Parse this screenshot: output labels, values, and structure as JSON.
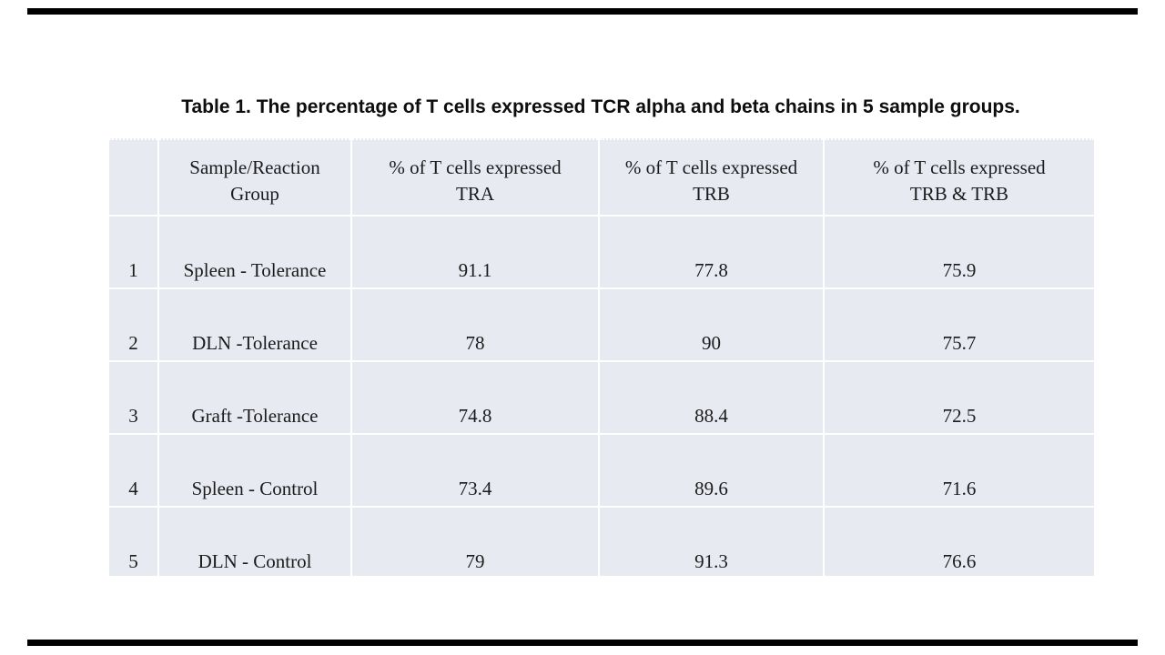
{
  "slide": {
    "title": "Table 1. The percentage of T cells expressed TCR alpha and beta chains in 5 sample groups.",
    "decor": {
      "top_bar_color": "#000000",
      "bottom_bar_color": "#000000"
    }
  },
  "table": {
    "style": {
      "cell_bg": "#e8eaf2",
      "grid_line_color": "#ffffff",
      "text_color": "#1b1b1b"
    },
    "headers": [
      {
        "line1": "",
        "line2": ""
      },
      {
        "line1": "Sample/Reaction",
        "line2": "Group"
      },
      {
        "line1": "% of T cells expressed",
        "line2": "TRA"
      },
      {
        "line1": "% of T cells expressed",
        "line2": "TRB"
      },
      {
        "line1": "% of T cells expressed",
        "line2": "TRB & TRB"
      }
    ],
    "rows": [
      {
        "num": "1",
        "group": "Spleen - Tolerance",
        "tra": "91.1",
        "trb": "77.8",
        "trb_and_trb": "75.9"
      },
      {
        "num": "2",
        "group": "DLN -Tolerance",
        "tra": "78",
        "trb": "90",
        "trb_and_trb": "75.7"
      },
      {
        "num": "3",
        "group": "Graft -Tolerance",
        "tra": "74.8",
        "trb": "88.4",
        "trb_and_trb": "72.5"
      },
      {
        "num": "4",
        "group": "Spleen - Control",
        "tra": "73.4",
        "trb": "89.6",
        "trb_and_trb": "71.6"
      },
      {
        "num": "5",
        "group": "DLN - Control",
        "tra": "79",
        "trb": "91.3",
        "trb_and_trb": "76.6"
      }
    ]
  },
  "chart_data": {
    "type": "table",
    "title": "Table 1. The percentage of T cells expressed TCR alpha and beta chains in 5 sample groups.",
    "columns": [
      "#",
      "Sample/Reaction Group",
      "% of T cells expressed TRA",
      "% of T cells expressed TRB",
      "% of T cells expressed TRB & TRB"
    ],
    "rows": [
      [
        "1",
        "Spleen - Tolerance",
        91.1,
        77.8,
        75.9
      ],
      [
        "2",
        "DLN -Tolerance",
        78,
        90,
        75.7
      ],
      [
        "3",
        "Graft -Tolerance",
        74.8,
        88.4,
        72.5
      ],
      [
        "4",
        "Spleen - Control",
        73.4,
        89.6,
        71.6
      ],
      [
        "5",
        "DLN - Control",
        79,
        91.3,
        76.6
      ]
    ]
  }
}
